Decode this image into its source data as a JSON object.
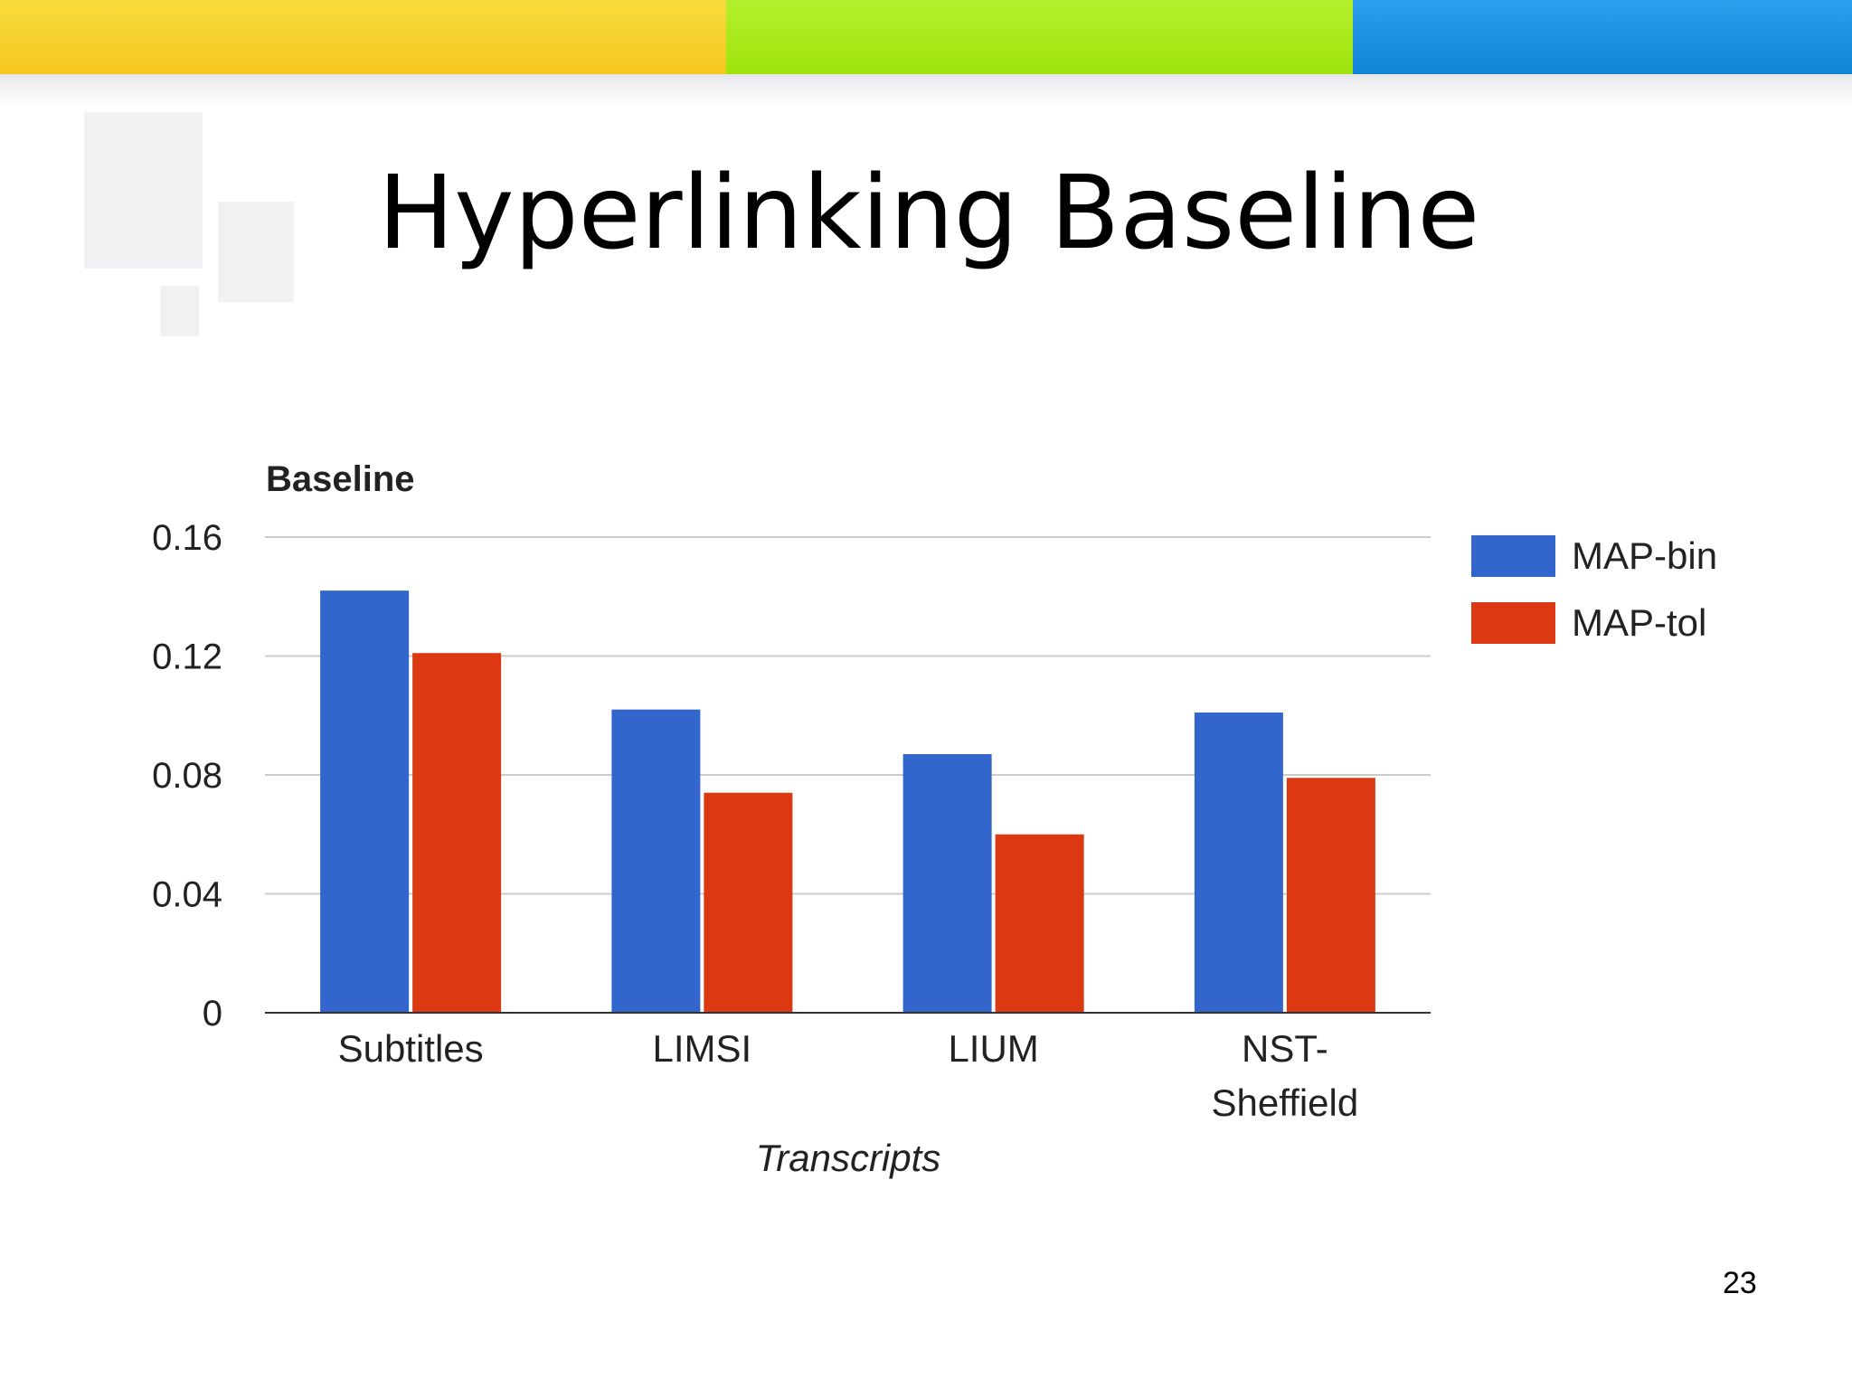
{
  "slide": {
    "title": "Hyperlinking Baseline",
    "page_number": "23"
  },
  "colors": {
    "band_yellow": "#f5c71f",
    "band_green": "#9fe40c",
    "band_blue": "#1283d8",
    "series_bin": "#3366cc",
    "series_tol": "#dc3912"
  },
  "chart_data": {
    "type": "bar",
    "title": "Baseline",
    "xlabel": "Transcripts",
    "ylabel": "",
    "categories": [
      "Subtitles",
      "LIMSI",
      "LIUM",
      "NST-Sheffield"
    ],
    "category_lines": [
      [
        "Subtitles"
      ],
      [
        "LIMSI"
      ],
      [
        "LIUM"
      ],
      [
        "NST-",
        "Sheffield"
      ]
    ],
    "series": [
      {
        "name": "MAP-bin",
        "color": "#3366cc",
        "values": [
          0.142,
          0.102,
          0.087,
          0.101
        ]
      },
      {
        "name": "MAP-tol",
        "color": "#dc3912",
        "values": [
          0.121,
          0.074,
          0.06,
          0.079
        ]
      }
    ],
    "ylim": [
      0,
      0.16
    ],
    "yticks": [
      "0",
      "0.04",
      "0.08",
      "0.12",
      "0.16"
    ],
    "ytick_values": [
      0,
      0.04,
      0.08,
      0.12,
      0.16
    ],
    "grid": true,
    "legend_position": "right"
  }
}
